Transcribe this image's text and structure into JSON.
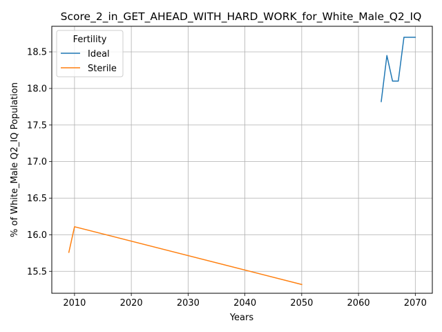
{
  "chart_data": {
    "type": "line",
    "title": "Score_2_in_GET_AHEAD_WITH_HARD_WORK_for_White_Male_Q2_IQ",
    "xlabel": "Years",
    "ylabel": "% of White_Male Q2_IQ Population",
    "xlim": [
      2006,
      2073
    ],
    "ylim": [
      15.2,
      18.85
    ],
    "xticks": [
      2010,
      2020,
      2030,
      2040,
      2050,
      2060,
      2070
    ],
    "xtick_labels": [
      "2010",
      "2020",
      "2030",
      "2040",
      "2050",
      "2060",
      "2070"
    ],
    "yticks": [
      15.5,
      16.0,
      16.5,
      17.0,
      17.5,
      18.0,
      18.5
    ],
    "ytick_labels": [
      "15.5",
      "16.0",
      "16.5",
      "17.0",
      "17.5",
      "18.0",
      "18.5"
    ],
    "grid": true,
    "legend": {
      "title": "Fertility",
      "placement": "top-left"
    },
    "series": [
      {
        "name": "Ideal",
        "color": "#1f77b4",
        "x": [
          2064,
          2065,
          2066,
          2067,
          2068,
          2069,
          2070
        ],
        "y": [
          17.82,
          18.45,
          18.1,
          18.1,
          18.7,
          18.7,
          18.7
        ]
      },
      {
        "name": "Sterile",
        "color": "#ff7f0e",
        "x": [
          2009,
          2010,
          2050
        ],
        "y": [
          15.76,
          16.11,
          15.32
        ]
      }
    ]
  }
}
